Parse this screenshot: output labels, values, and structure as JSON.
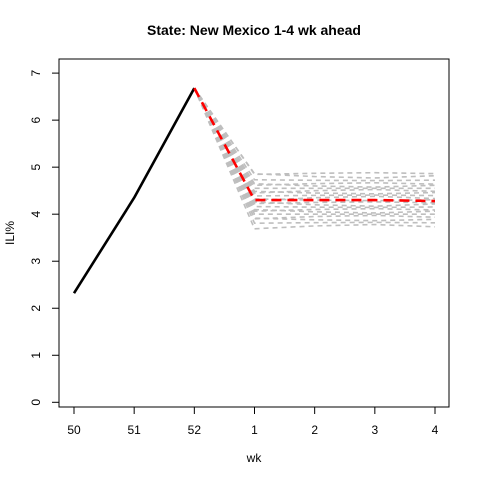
{
  "chart_data": {
    "type": "line",
    "title": "State: New Mexico 1-4 wk ahead",
    "xlabel": "wk",
    "ylabel": "ILI%",
    "x_tick_labels": [
      "50",
      "51",
      "52",
      "1",
      "2",
      "3",
      "4"
    ],
    "y_ticks": [
      0,
      1,
      2,
      3,
      4,
      5,
      6,
      7
    ],
    "ylim": [
      -0.1,
      7.3
    ],
    "grid": false,
    "series": [
      {
        "role": "observed",
        "color": "#000000",
        "style": "solid",
        "points": [
          [
            "50",
            2.32
          ],
          [
            "51",
            4.35
          ],
          [
            "52",
            6.68
          ]
        ]
      },
      {
        "role": "forecast",
        "color": "#ff0000",
        "style": "dashed",
        "points": [
          [
            "52",
            6.68
          ],
          [
            "1",
            4.3
          ],
          [
            "2",
            4.3
          ],
          [
            "3",
            4.3
          ],
          [
            "4",
            4.28
          ]
        ]
      }
    ],
    "ensemble": {
      "color": "#bebebe",
      "style": "dashed",
      "start": [
        "52",
        6.68
      ],
      "levels": [
        3.75,
        3.82,
        3.88,
        3.95,
        4.0,
        4.05,
        4.1,
        4.15,
        4.2,
        4.25,
        4.3,
        4.35,
        4.4,
        4.45,
        4.5,
        4.55,
        4.6,
        4.65,
        4.72,
        4.8,
        4.87
      ]
    }
  }
}
